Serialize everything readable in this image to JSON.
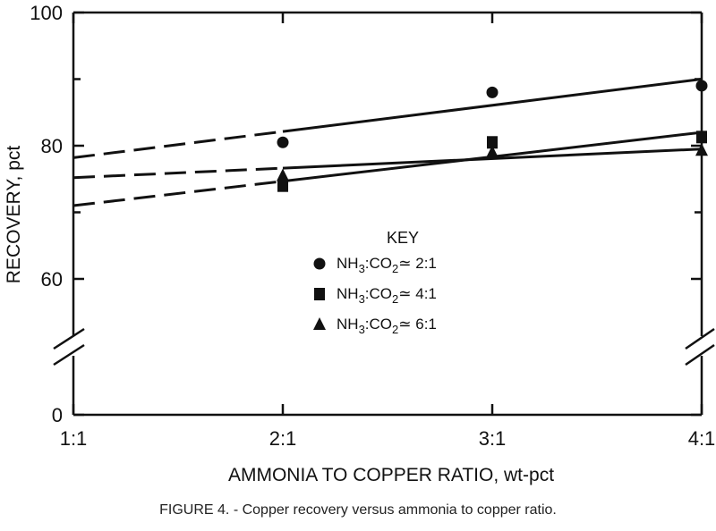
{
  "chart_data": {
    "type": "scatter",
    "xlabel": "AMMONIA TO COPPER RATIO, wt-pct",
    "ylabel": "RECOVERY, pct",
    "x_ticks": [
      "1:1",
      "2:1",
      "3:1",
      "4:1"
    ],
    "y_ticks": [
      "0",
      "60",
      "80",
      "100"
    ],
    "x": [
      1,
      2,
      3,
      4
    ],
    "ylim": [
      0,
      100
    ],
    "y_axis_break": [
      50,
      60
    ],
    "grid": false,
    "legend_position": "center",
    "legend_title": "KEY",
    "series": [
      {
        "name": "NH3:CO2≃2:1",
        "marker": "circle",
        "points": [
          {
            "x": 2,
            "y": 80.5
          },
          {
            "x": 3,
            "y": 88
          },
          {
            "x": 4,
            "y": 89
          }
        ],
        "fit_line": {
          "from": [
            1,
            78.2
          ],
          "to": [
            4,
            90
          ],
          "dashed_until": 2
        }
      },
      {
        "name": "NH3:CO2≃4:1",
        "marker": "square",
        "points": [
          {
            "x": 2,
            "y": 74
          },
          {
            "x": 3,
            "y": 80.5
          },
          {
            "x": 4,
            "y": 81.3
          }
        ],
        "fit_line": {
          "from": [
            1,
            71
          ],
          "to": [
            4,
            82
          ],
          "dashed_until": 2
        }
      },
      {
        "name": "NH3:CO2≃6:1",
        "marker": "triangle",
        "points": [
          {
            "x": 2,
            "y": 75.5
          },
          {
            "x": 3,
            "y": 79
          },
          {
            "x": 4,
            "y": 79.3
          }
        ],
        "fit_line": {
          "from": [
            1,
            75.2
          ],
          "to": [
            4,
            79.5
          ],
          "dashed_until": 2
        }
      }
    ]
  },
  "legend": {
    "title": "KEY",
    "items": [
      {
        "prefix": "NH",
        "sub1": "3",
        "mid": ":CO",
        "sub2": "2",
        "suffix": "≃ 2:1"
      },
      {
        "prefix": "NH",
        "sub1": "3",
        "mid": ":CO",
        "sub2": "2",
        "suffix": "≃ 4:1"
      },
      {
        "prefix": "NH",
        "sub1": "3",
        "mid": ":CO",
        "sub2": "2",
        "suffix": "≃ 6:1"
      }
    ]
  },
  "caption": "FIGURE 4. - Copper recovery versus ammonia to copper ratio."
}
